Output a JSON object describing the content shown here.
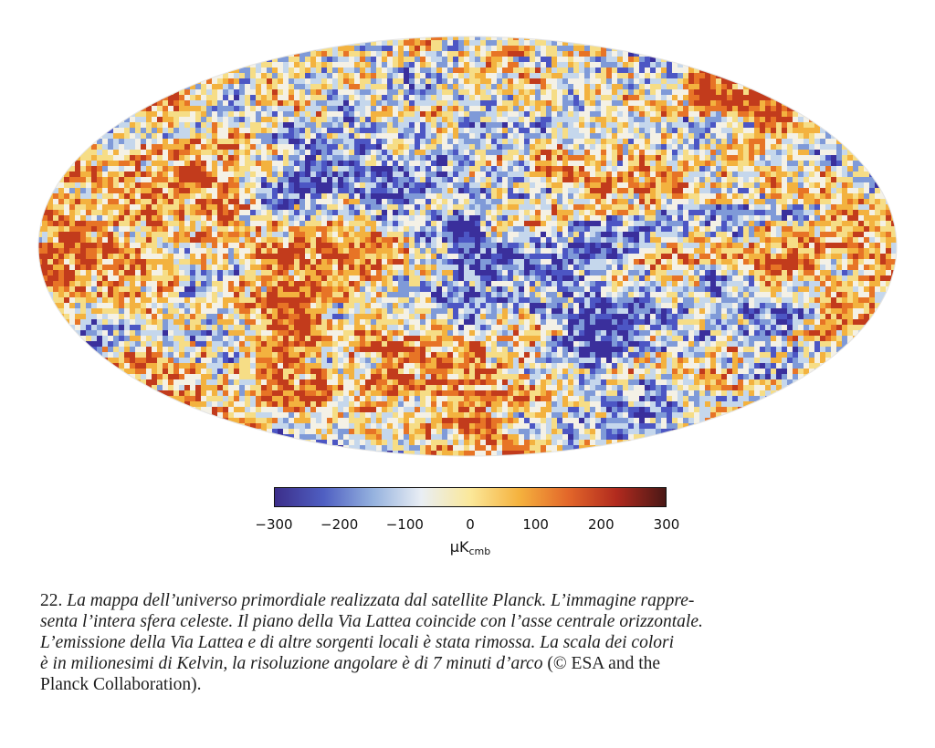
{
  "map": {
    "colors": [
      "#3a2f9c",
      "#4c56c4",
      "#7f9ad8",
      "#c5d7ec",
      "#f4f1e6",
      "#f6dd86",
      "#f3b23f",
      "#e77426",
      "#c23b1c"
    ]
  },
  "colorbar": {
    "gradient": [
      "#3c2e8a",
      "#4f5fc2",
      "#94b1de",
      "#e9eef4",
      "#fbe89a",
      "#f5b23e",
      "#e3672a",
      "#b12a1e",
      "#4a1816"
    ],
    "ticks": [
      "−300",
      "−200",
      "−100",
      "0",
      "100",
      "200",
      "300"
    ],
    "unit": "μK",
    "unit_sub": "cmb"
  },
  "caption": {
    "number": "22.",
    "line1": "La mappa dell’universo primordiale realizzata dal satellite Planck. L’immagine rappre-",
    "line2": "senta l’intera sfera celeste. Il piano della Via Lattea coincide con l’asse centrale orizzontale.",
    "line3": "L’emissione della Via Lattea e di altre sorgenti locali è stata rimossa. La scala dei colori",
    "line4": "è in milionesimi di Kelvin, la risoluzione angolare è di 7 minuti d’arco",
    "credit": "(© ESA and the",
    "line5": "Planck Collaboration)."
  }
}
